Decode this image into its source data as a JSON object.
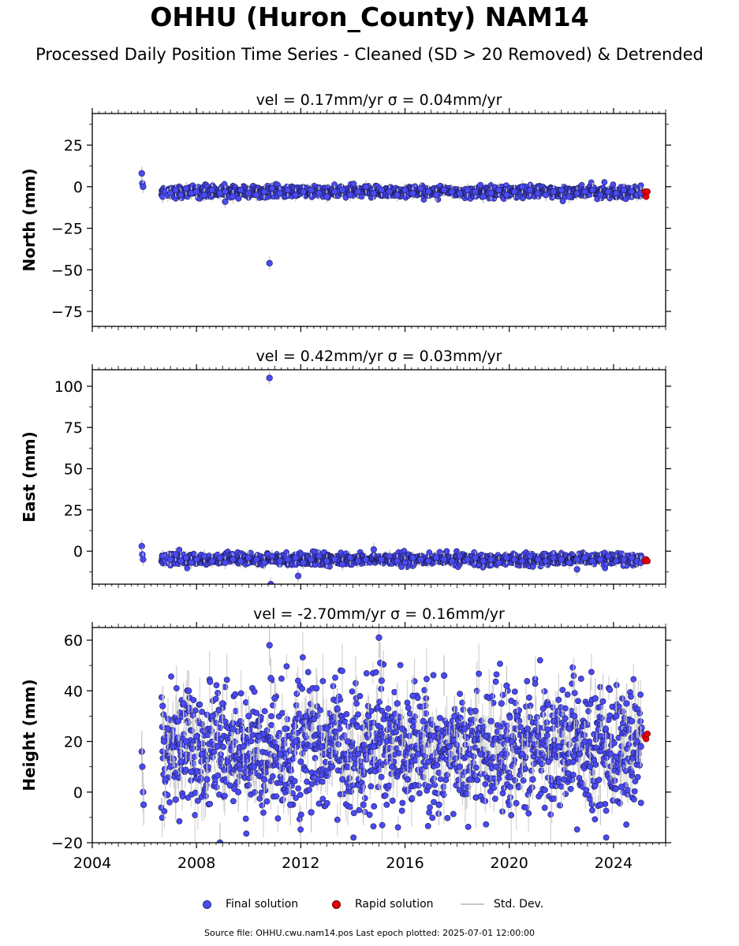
{
  "title": "OHHU (Huron_County) NAM14",
  "subtitle": "Processed Daily Position Time Series - Cleaned (SD > 20 Removed) & Detrended",
  "legend": {
    "final": "Final solution",
    "rapid": "Rapid solution",
    "sd": "Std. Dev."
  },
  "source_note": "Source file: OHHU.cwu.nam14.pos  Last epoch plotted: 2025-07-01 12:00:00",
  "colors": {
    "final_solution": "#4a4af5",
    "rapid_solution": "#e60000",
    "std_dev": "#c8c8c8"
  },
  "chart_data": [
    {
      "type": "scatter",
      "component": "north",
      "title": "vel = 0.17mm/yr   σ = 0.04mm/yr",
      "xlabel": "",
      "ylabel": "North (mm)",
      "xlim": [
        2004.0,
        2026.0
      ],
      "ylim": [
        -84,
        44
      ],
      "yticks": [
        25,
        0,
        -25,
        -50,
        -75
      ],
      "ytick_labels": [
        "25",
        "0",
        "−25",
        "−50",
        "−75"
      ],
      "grid": false,
      "final_solution": {
        "x": [
          2005.9,
          2005.92,
          2005.95,
          2006.7,
          2006.8,
          2006.9,
          2007.0,
          2007.2,
          2007.4,
          2007.6,
          2007.8,
          2008.0,
          2008.3,
          2008.6,
          2008.9,
          2009.1,
          2009.4,
          2009.7,
          2010.0,
          2010.3,
          2010.6,
          2010.9,
          2011.2,
          2011.5,
          2011.8,
          2012.1,
          2012.4,
          2012.7,
          2013.0,
          2013.3,
          2013.6,
          2013.9,
          2014.2,
          2014.5,
          2014.8,
          2015.1,
          2015.4,
          2015.7,
          2016.0,
          2016.3,
          2016.6,
          2016.9,
          2017.2,
          2017.5,
          2017.8,
          2018.1,
          2018.4,
          2018.7,
          2019.0,
          2019.3,
          2019.6,
          2019.9,
          2020.2,
          2020.5,
          2020.8,
          2021.1,
          2021.4,
          2021.7,
          2022.0,
          2022.3,
          2022.6,
          2022.9,
          2023.2,
          2023.5,
          2023.8,
          2024.1,
          2024.4,
          2024.7,
          2024.9,
          2025.05,
          2009.1,
          2010.8
        ],
        "y": [
          8,
          2,
          0,
          -6,
          -3,
          -5,
          -4,
          -2,
          -5,
          -1,
          -4,
          -3,
          -5,
          -2,
          -4,
          -3,
          -6,
          -2,
          -4,
          -5,
          -3,
          -1,
          -4,
          -2,
          -5,
          -3,
          -2,
          -4,
          -6,
          -3,
          -2,
          -5,
          -3,
          0,
          -4,
          -2,
          -3,
          -5,
          -2,
          -4,
          -1,
          -3,
          -5,
          -2,
          -3,
          -4,
          -2,
          -3,
          -6,
          -4,
          -2,
          -5,
          -3,
          0,
          -2,
          -4,
          -5,
          -3,
          -2,
          -6,
          -4,
          -3,
          -2,
          -5,
          -3,
          -4,
          -2,
          -3,
          -5,
          -4,
          -9,
          -46
        ]
      },
      "rapid_solution": {
        "x": [
          2025.2,
          2025.25,
          2025.3
        ],
        "y": [
          -3,
          -6,
          -3
        ]
      }
    },
    {
      "type": "scatter",
      "component": "east",
      "title": "vel = 0.42mm/yr   σ = 0.03mm/yr",
      "xlabel": "",
      "ylabel": "East (mm)",
      "xlim": [
        2004.0,
        2026.0
      ],
      "ylim": [
        -20,
        110
      ],
      "yticks": [
        100,
        75,
        50,
        25,
        0
      ],
      "ytick_labels": [
        "100",
        "75",
        "50",
        "25",
        "0"
      ],
      "grid": false,
      "final_solution": {
        "x": [
          2005.9,
          2005.92,
          2005.95,
          2006.7,
          2006.8,
          2006.9,
          2007.0,
          2007.2,
          2007.4,
          2007.6,
          2007.8,
          2008.0,
          2008.3,
          2008.6,
          2008.9,
          2009.1,
          2009.4,
          2009.7,
          2010.0,
          2010.3,
          2010.6,
          2010.9,
          2011.2,
          2011.5,
          2011.8,
          2012.1,
          2012.4,
          2012.7,
          2013.0,
          2013.3,
          2013.6,
          2013.9,
          2014.2,
          2014.5,
          2014.8,
          2015.1,
          2015.4,
          2015.7,
          2016.0,
          2016.3,
          2016.6,
          2016.9,
          2017.2,
          2017.5,
          2017.8,
          2018.1,
          2018.4,
          2018.7,
          2019.0,
          2019.3,
          2019.6,
          2019.9,
          2020.2,
          2020.5,
          2020.8,
          2021.1,
          2021.4,
          2021.7,
          2022.0,
          2022.3,
          2022.6,
          2022.9,
          2023.2,
          2023.5,
          2023.8,
          2024.1,
          2024.4,
          2024.7,
          2024.9,
          2025.05,
          2010.8,
          2010.85,
          2011.9,
          2022.6
        ],
        "y": [
          3,
          -2,
          -5,
          -3,
          -6,
          -4,
          -5,
          -2,
          -6,
          -4,
          -7,
          -5,
          -3,
          -6,
          -4,
          -7,
          -5,
          -6,
          -4,
          -5,
          -7,
          -3,
          -6,
          -5,
          -4,
          -7,
          -5,
          -3,
          -6,
          -5,
          -8,
          -4,
          -6,
          -5,
          1,
          -5,
          -3,
          -6,
          -7,
          -4,
          -5,
          -6,
          -4,
          -5,
          -6,
          -3,
          -5,
          -4,
          -6,
          -5,
          -7,
          -4,
          -5,
          -6,
          -3,
          -5,
          -6,
          -4,
          -5,
          -7,
          -5,
          -4,
          -6,
          -5,
          -3,
          -6,
          -5,
          -4,
          -6,
          -7,
          105,
          -20,
          -15,
          -11
        ]
      },
      "rapid_solution": {
        "x": [
          2025.2,
          2025.25,
          2025.3
        ],
        "y": [
          -6,
          -5,
          -6
        ]
      }
    },
    {
      "type": "scatter",
      "component": "height",
      "title": "vel = -2.70mm/yr   σ = 0.16mm/yr",
      "xlabel": "",
      "ylabel": "Height (mm)",
      "xlim": [
        2004.0,
        2026.0
      ],
      "ylim": [
        -20,
        65
      ],
      "yticks": [
        60,
        40,
        20,
        0,
        -20
      ],
      "ytick_labels": [
        "60",
        "40",
        "20",
        "0",
        "−20"
      ],
      "xticks": [
        2004,
        2008,
        2012,
        2016,
        2020,
        2024
      ],
      "xtick_labels": [
        "2004",
        "2008",
        "2012",
        "2016",
        "2020",
        "2024"
      ],
      "grid": false,
      "final_solution": {
        "x": [
          2005.9,
          2005.92,
          2005.95,
          2005.97,
          2006.7,
          2006.75,
          2006.8,
          2006.9,
          2007.0,
          2007.1,
          2007.2,
          2007.3,
          2007.4,
          2007.5,
          2007.6,
          2007.7,
          2007.8,
          2008.0,
          2008.2,
          2008.4,
          2008.6,
          2008.8,
          2008.9,
          2009.0,
          2009.2,
          2009.4,
          2009.6,
          2009.8,
          2010.0,
          2010.2,
          2010.4,
          2010.6,
          2010.8,
          2010.85,
          2011.0,
          2011.2,
          2011.4,
          2011.6,
          2011.8,
          2012.0,
          2012.2,
          2012.4,
          2012.6,
          2012.8,
          2013.0,
          2013.2,
          2013.4,
          2013.6,
          2013.8,
          2014.0,
          2014.2,
          2014.4,
          2014.6,
          2014.8,
          2015.0,
          2015.05,
          2015.1,
          2015.3,
          2015.5,
          2015.7,
          2015.9,
          2016.1,
          2016.3,
          2016.5,
          2016.7,
          2016.9,
          2017.1,
          2017.3,
          2017.5,
          2017.7,
          2017.9,
          2018.1,
          2018.3,
          2018.5,
          2018.7,
          2018.9,
          2019.1,
          2019.3,
          2019.5,
          2019.7,
          2019.9,
          2020.1,
          2020.3,
          2020.5,
          2020.7,
          2020.9,
          2021.1,
          2021.3,
          2021.5,
          2021.7,
          2021.9,
          2022.1,
          2022.3,
          2022.5,
          2022.7,
          2022.9,
          2023.1,
          2023.3,
          2023.5,
          2023.7,
          2023.9,
          2024.1,
          2024.3,
          2024.5,
          2024.7,
          2024.9,
          2025.05
        ],
        "y": [
          16,
          10,
          0,
          -5,
          34,
          20,
          5,
          25,
          10,
          18,
          -3,
          28,
          12,
          35,
          20,
          40,
          8,
          22,
          15,
          5,
          30,
          18,
          -20,
          35,
          12,
          25,
          0,
          18,
          30,
          10,
          22,
          5,
          58,
          45,
          37,
          15,
          25,
          -5,
          20,
          12,
          30,
          -8,
          41,
          18,
          25,
          10,
          33,
          5,
          20,
          28,
          15,
          -5,
          30,
          18,
          61,
          51,
          44,
          20,
          10,
          35,
          25,
          5,
          38,
          15,
          28,
          12,
          22,
          -5,
          46,
          18,
          30,
          10,
          25,
          5,
          32,
          15,
          22,
          28,
          10,
          35,
          42,
          20,
          30,
          15,
          25,
          5,
          22,
          33,
          12,
          28,
          18,
          5,
          25,
          30,
          15,
          20,
          10,
          37,
          -5,
          25,
          15,
          30,
          2,
          35,
          28,
          20,
          18
        ],
        "band_center": 17,
        "band_spread": 12
      },
      "rapid_solution": {
        "x": [
          2025.2,
          2025.25,
          2025.3
        ],
        "y": [
          22,
          21,
          23
        ]
      }
    }
  ]
}
